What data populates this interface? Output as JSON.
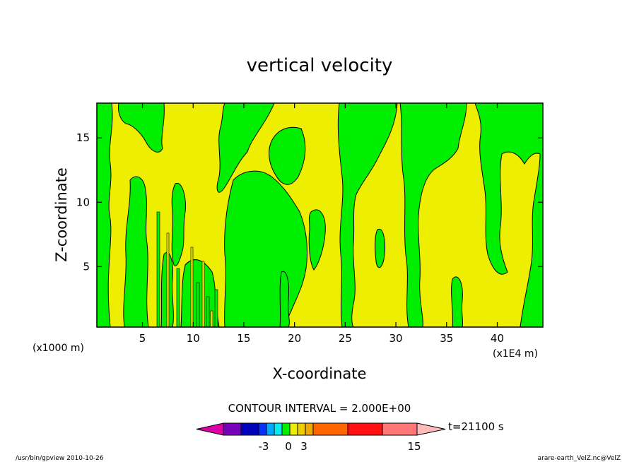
{
  "chart_data": {
    "type": "contour",
    "title": "vertical velocity",
    "xlabel": "X-coordinate",
    "ylabel": "Z-coordinate",
    "x_units_left": "(x1000 m)",
    "x_units_right": "(x1E4 m)",
    "x_ticks": [
      5,
      10,
      15,
      20,
      25,
      30,
      35,
      40
    ],
    "y_ticks": [
      5,
      10,
      15
    ],
    "xlim": [
      0.5,
      44.5
    ],
    "ylim": [
      0.3,
      17.7
    ],
    "fill_colors": {
      "positive": "#00ee00",
      "near_zero": "#eeee00"
    },
    "contour_interval_text": "CONTOUR INTERVAL = 2.000E+00",
    "colorbar": {
      "colors": [
        "#dd00aa",
        "#7700bb",
        "#0000bb",
        "#0033ff",
        "#00aaff",
        "#00eeee",
        "#00ee00",
        "#eeee00",
        "#eecc00",
        "#eeaa00",
        "#ff6600",
        "#ff1111",
        "#ff7777",
        "#ffbbbb"
      ],
      "tick_labels": [
        {
          "value": -3,
          "label": "-3"
        },
        {
          "value": 0,
          "label": "0"
        },
        {
          "value": 3,
          "label": "3"
        },
        {
          "value": 15,
          "label": "15"
        }
      ]
    },
    "time_label": "t=21100 s",
    "footer_left": "/usr/bin/gpview   2010-10-26",
    "footer_right": "arare-earth_VelZ.nc@VelZ"
  }
}
